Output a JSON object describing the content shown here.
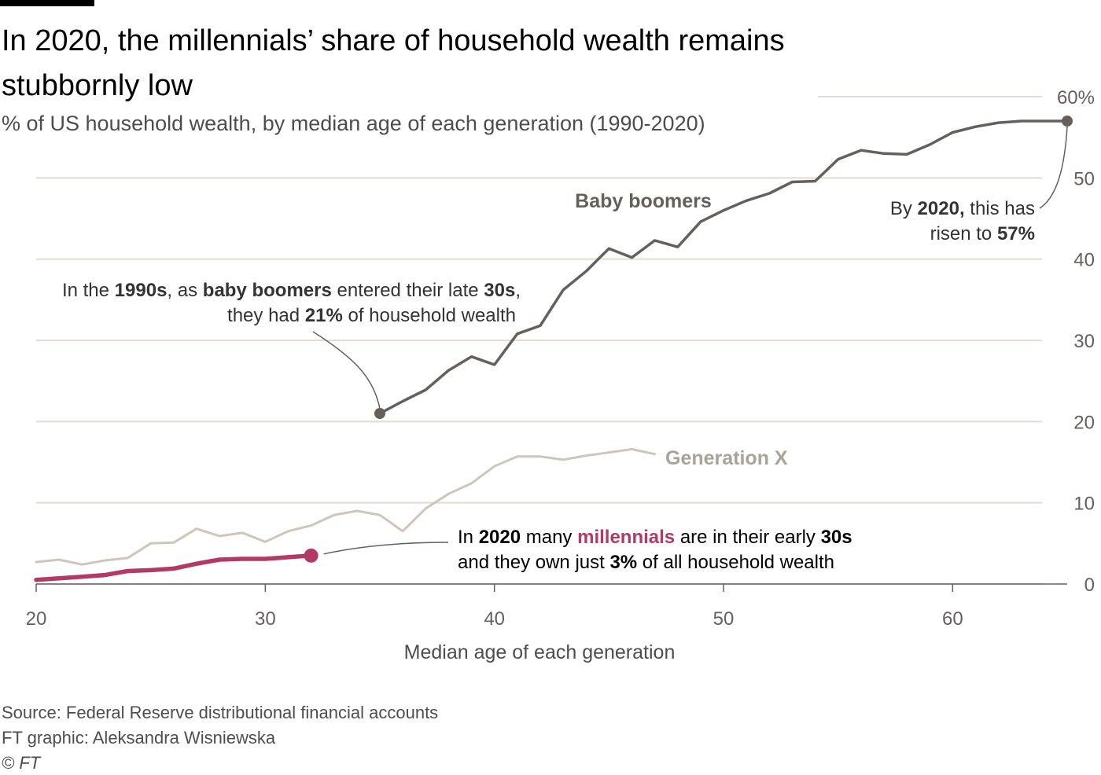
{
  "header": {
    "title": "In 2020, the millennials’ share of household wealth remains stubbornly low",
    "subtitle": "% of US household wealth, by median age of each generation (1990-2020)"
  },
  "footer": {
    "source": "Source: Federal Reserve distributional financial accounts",
    "credit": "FT graphic: Aleksandra Wisniewska",
    "copyright": "© FT"
  },
  "colors": {
    "boomers": "#66605c",
    "genx": "#cec6b9",
    "millennials": "#b23a66",
    "grid": "#e4dcd2"
  },
  "annotations": {
    "boomers_1990": {
      "line1": [
        {
          "t": "In the ",
          "b": false
        },
        {
          "t": "1990s",
          "b": true
        },
        {
          "t": ", as ",
          "b": false
        },
        {
          "t": "baby boomers",
          "b": true
        },
        {
          "t": " entered their late ",
          "b": false
        },
        {
          "t": "30s",
          "b": true
        },
        {
          "t": ",",
          "b": false
        }
      ],
      "line2": [
        {
          "t": "they had ",
          "b": false
        },
        {
          "t": "21%",
          "b": true
        },
        {
          "t": " of household wealth",
          "b": false
        }
      ]
    },
    "boomers_2020": {
      "line1": [
        {
          "t": "By ",
          "b": false
        },
        {
          "t": "2020,",
          "b": true
        },
        {
          "t": " this has",
          "b": false
        }
      ],
      "line2": [
        {
          "t": "risen to ",
          "b": false
        },
        {
          "t": "57%",
          "b": true
        }
      ]
    },
    "millennials_2020": {
      "line1": [
        {
          "t": "In ",
          "b": false
        },
        {
          "t": "2020",
          "b": true
        },
        {
          "t": " many ",
          "b": false
        },
        {
          "t": "millennials",
          "b": true,
          "c": "millennials"
        },
        {
          "t": " are in their early ",
          "b": false
        },
        {
          "t": "30s",
          "b": true
        }
      ],
      "line2": [
        {
          "t": "and they own just ",
          "b": false
        },
        {
          "t": "3%",
          "b": true
        },
        {
          "t": " of all household wealth",
          "b": false
        }
      ]
    }
  },
  "chart_data": {
    "type": "line",
    "xlabel": "Median age of each generation",
    "ylabel": "",
    "xlim": [
      20,
      65
    ],
    "ylim": [
      0,
      60
    ],
    "x_ticks": [
      "20",
      "30",
      "40",
      "50",
      "60"
    ],
    "y_ticks": [
      "0",
      "10",
      "20",
      "30",
      "40",
      "50",
      "60%"
    ],
    "grid": "horizontal",
    "series": [
      {
        "name": "Baby boomers",
        "color_key": "boomers",
        "x": [
          35,
          36,
          37,
          38,
          39,
          40,
          41,
          42,
          43,
          44,
          45,
          46,
          47,
          48,
          49,
          50,
          51,
          52,
          53,
          54,
          55,
          56,
          57,
          58,
          59,
          60,
          61,
          62,
          63,
          64,
          65
        ],
        "y": [
          21.0,
          22.5,
          23.9,
          26.3,
          28.0,
          27.0,
          30.8,
          31.8,
          36.2,
          38.5,
          41.3,
          40.2,
          42.3,
          41.5,
          44.6,
          46.0,
          47.2,
          48.1,
          49.5,
          49.6,
          52.3,
          53.4,
          53.0,
          52.9,
          54.1,
          55.6,
          56.3,
          56.8,
          57.0,
          57.0,
          57.0
        ]
      },
      {
        "name": "Generation X",
        "color_key": "genx",
        "x": [
          20,
          21,
          22,
          23,
          24,
          25,
          26,
          27,
          28,
          29,
          30,
          31,
          32,
          33,
          34,
          35,
          36,
          37,
          38,
          39,
          40,
          41,
          42,
          43,
          44,
          45,
          46,
          47
        ],
        "y": [
          2.7,
          3.0,
          2.4,
          2.9,
          3.2,
          5.0,
          5.1,
          6.8,
          5.9,
          6.3,
          5.2,
          6.5,
          7.2,
          8.5,
          9.0,
          8.5,
          6.5,
          9.3,
          11.1,
          12.4,
          14.5,
          15.7,
          15.7,
          15.3,
          15.8,
          16.2,
          16.6,
          16.0
        ]
      },
      {
        "name": "millennials",
        "color_key": "millennials",
        "x": [
          20,
          21,
          22,
          23,
          24,
          25,
          26,
          27,
          28,
          29,
          30,
          31,
          32
        ],
        "y": [
          0.5,
          0.7,
          0.9,
          1.1,
          1.6,
          1.7,
          1.9,
          2.5,
          3.0,
          3.1,
          3.1,
          3.3,
          3.5
        ]
      }
    ]
  }
}
